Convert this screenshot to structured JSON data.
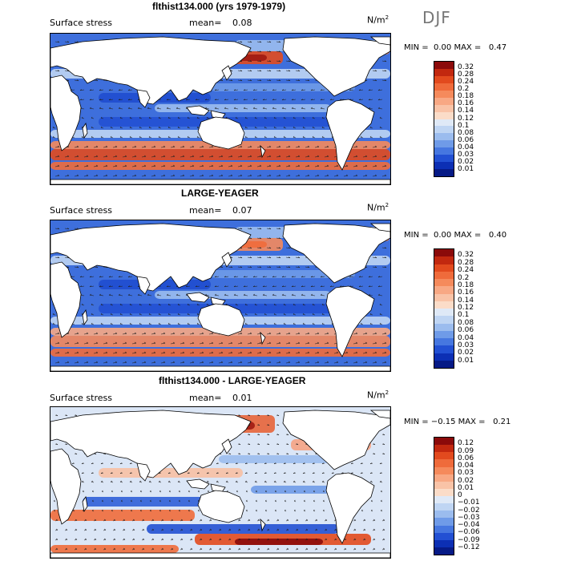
{
  "season": "DJF",
  "panels": [
    {
      "title": "flthist134.000 (yrs 1979-1979)",
      "field": "Surface stress",
      "mean_label": "mean=",
      "mean_value": "0.08",
      "unit": "N/m",
      "unit_sup": "2",
      "min_label": "MIN =",
      "min_value": "0.00",
      "max_label": "MAX =",
      "max_value": "0.47",
      "colorbar_ticks": [
        "0.32",
        "0.28",
        "0.24",
        "0.2",
        "0.18",
        "0.16",
        "0.14",
        "0.12",
        "0.1",
        "0.08",
        "0.06",
        "0.04",
        "0.03",
        "0.02",
        "0.01"
      ],
      "colorbar_colors": [
        "#8b0a0a",
        "#c2280f",
        "#e24a1e",
        "#ef6b3b",
        "#f58a5c",
        "#f8a884",
        "#f9c3a7",
        "#fbdcc8",
        "#dfe9f7",
        "#bfd5f3",
        "#9bbcee",
        "#6f9be8",
        "#4677e0",
        "#2250d3",
        "#0c2fb4",
        "#061a86"
      ]
    },
    {
      "title": "LARGE-YEAGER",
      "field": "Surface stress",
      "mean_label": "mean=",
      "mean_value": "0.07",
      "unit": "N/m",
      "unit_sup": "2",
      "min_label": "MIN =",
      "min_value": "0.00",
      "max_label": "MAX =",
      "max_value": "0.40",
      "colorbar_ticks": [
        "0.32",
        "0.28",
        "0.24",
        "0.2",
        "0.18",
        "0.16",
        "0.14",
        "0.12",
        "0.1",
        "0.08",
        "0.06",
        "0.04",
        "0.03",
        "0.02",
        "0.01"
      ],
      "colorbar_colors": [
        "#8b0a0a",
        "#c2280f",
        "#e24a1e",
        "#ef6b3b",
        "#f58a5c",
        "#f8a884",
        "#f9c3a7",
        "#fbdcc8",
        "#dfe9f7",
        "#bfd5f3",
        "#9bbcee",
        "#6f9be8",
        "#4677e0",
        "#2250d3",
        "#0c2fb4",
        "#061a86"
      ]
    },
    {
      "title": "flthist134.000 - LARGE-YEAGER",
      "field": "Surface stress",
      "mean_label": "mean=",
      "mean_value": "0.01",
      "unit": "N/m",
      "unit_sup": "2",
      "min_label": "MIN =",
      "min_value": "−0.15",
      "max_label": "MAX =",
      "max_value": "0.21",
      "colorbar_ticks": [
        "0.12",
        "0.09",
        "0.06",
        "0.04",
        "0.03",
        "0.02",
        "0.01",
        "0",
        "−0.01",
        "−0.02",
        "−0.03",
        "−0.04",
        "−0.06",
        "−0.09",
        "−0.12"
      ],
      "colorbar_colors": [
        "#8b0a0a",
        "#c2280f",
        "#e24a1e",
        "#ef6b3b",
        "#f58a5c",
        "#f8a884",
        "#f9c3a7",
        "#fbdcc8",
        "#dfe9f7",
        "#bfd5f3",
        "#9bbcee",
        "#6f9be8",
        "#4677e0",
        "#2250d3",
        "#0c2fb4",
        "#061a86"
      ]
    }
  ]
}
